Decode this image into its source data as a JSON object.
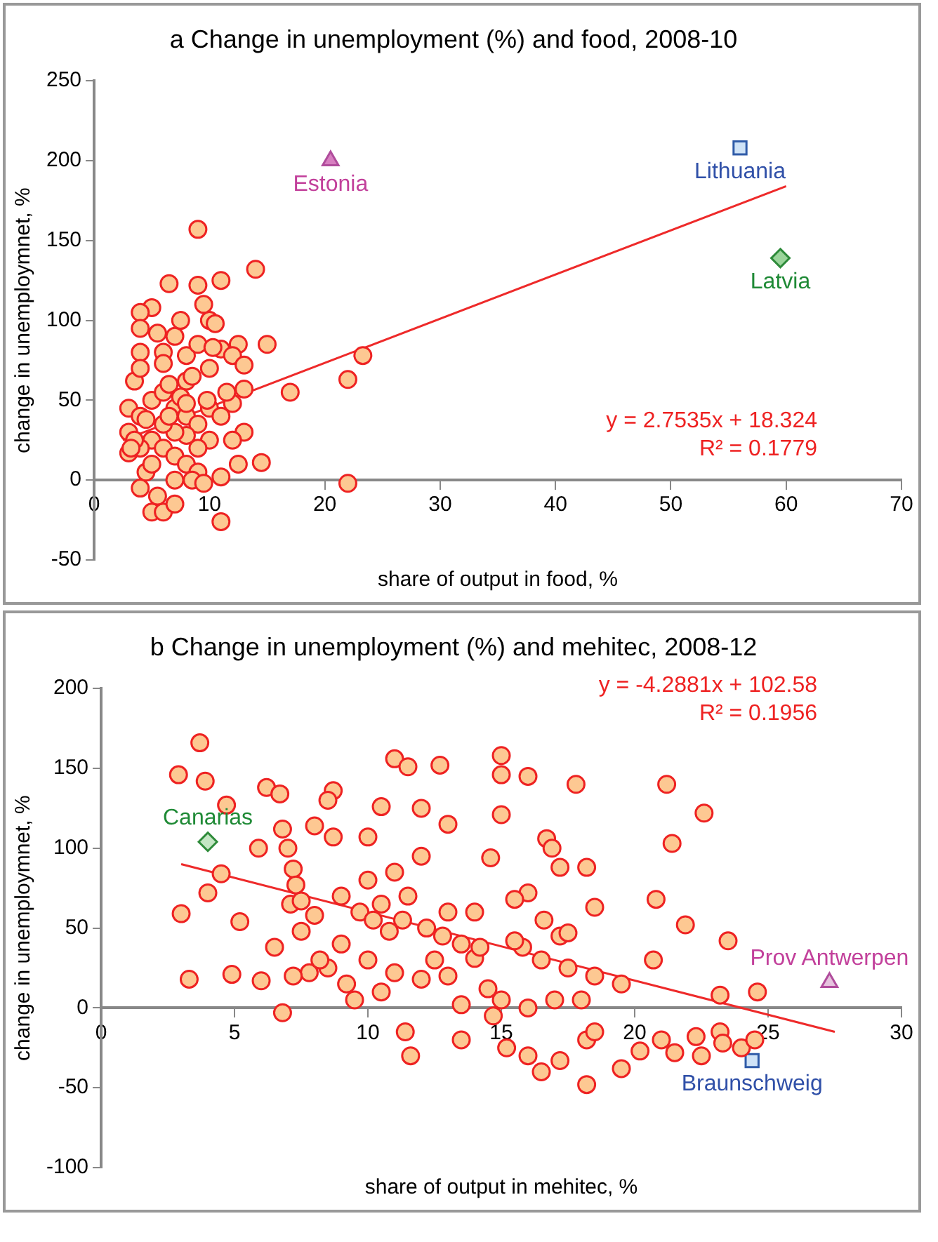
{
  "chart_data": [
    {
      "type": "scatter",
      "title": "a Change in unemployment (%) and food, 2008-10",
      "xlabel": "share of output in food, %",
      "ylabel": "change in unemploymnet, %",
      "xlim": [
        0,
        70
      ],
      "xticks": [
        0,
        10,
        20,
        30,
        40,
        50,
        60,
        70
      ],
      "ylim": [
        -50,
        250
      ],
      "yticks": [
        -50,
        0,
        50,
        100,
        150,
        200,
        250
      ],
      "grid": false,
      "legend": false,
      "annotations": [
        "y = 2.7535x + 18.324",
        "R² = 0.1779"
      ],
      "series": [
        {
          "color": "#fdc892",
          "marker": "circle",
          "x": [
            9,
            14,
            11,
            6.5,
            9,
            5,
            4,
            4,
            10,
            10.5,
            9.5,
            12.5,
            15,
            11,
            12,
            8,
            6,
            4,
            3.5,
            8,
            10,
            13,
            17,
            22,
            23.3,
            22,
            11,
            14.5,
            5,
            6,
            7,
            4,
            3,
            3,
            3,
            4,
            5,
            6,
            7,
            8,
            9,
            10,
            11,
            12,
            13,
            12.5,
            11,
            4.5,
            5,
            6,
            7,
            8,
            9,
            10,
            9,
            8,
            7,
            6,
            5,
            4,
            3.5,
            5.5,
            7,
            8.5,
            9.5,
            6.5,
            7.5,
            8.5,
            9,
            7,
            5.5,
            6,
            4,
            7.5,
            10.3,
            9.8,
            11.5,
            12,
            13,
            8,
            6.5,
            4.5,
            3.2
          ],
          "values": [
            157,
            132,
            125,
            123,
            122,
            108,
            105,
            95,
            100,
            98,
            110,
            85,
            85,
            82,
            78,
            78,
            80,
            80,
            62,
            62,
            70,
            72,
            55,
            63,
            78,
            -2,
            -26,
            11,
            -20,
            -20,
            -15,
            -5,
            17,
            30,
            45,
            40,
            50,
            55,
            45,
            40,
            35,
            45,
            40,
            48,
            30,
            10,
            2,
            5,
            25,
            20,
            15,
            10,
            5,
            25,
            20,
            28,
            30,
            35,
            10,
            20,
            25,
            -10,
            0,
            0,
            -2,
            60,
            52,
            65,
            85,
            90,
            92,
            73,
            70,
            100,
            83,
            50,
            55,
            25,
            57,
            48,
            40,
            38,
            20
          ]
        },
        {
          "name": "Estonia",
          "color": "#d77fc0",
          "marker": "triangle",
          "x": [
            20.5
          ],
          "values": [
            200
          ]
        },
        {
          "name": "Lithuania",
          "color": "#cfe3f7",
          "marker": "square",
          "x": [
            56
          ],
          "values": [
            208
          ]
        },
        {
          "name": "Latvia",
          "color": "#9bd59b",
          "marker": "diamond",
          "x": [
            59.5
          ],
          "values": [
            139
          ]
        },
        {
          "type": "line",
          "color": "#ee2a2a",
          "marker": "none",
          "x": [
            2.5,
            60
          ],
          "values": [
            25,
            184
          ]
        }
      ]
    },
    {
      "type": "scatter",
      "title": "b Change in unemployment (%) and mehitec, 2008-12",
      "xlabel": "share of output in mehitec, %",
      "ylabel": "change in unemploymnet, %",
      "xlim": [
        0,
        30
      ],
      "xticks": [
        0,
        5,
        10,
        15,
        20,
        25,
        30
      ],
      "ylim": [
        -100,
        200
      ],
      "yticks": [
        -100,
        -50,
        0,
        50,
        100,
        150,
        200
      ],
      "grid": false,
      "legend": false,
      "annotations": [
        "y = -4.2881x + 102.58",
        "R² = 0.1956"
      ],
      "series": [
        {
          "color": "#fdc892",
          "marker": "circle",
          "x": [
            3.7,
            2.9,
            3.9,
            4.7,
            3,
            4,
            4.5,
            5.2,
            3.3,
            4.9,
            6.2,
            6.7,
            8.7,
            8.5,
            6.8,
            7,
            7.2,
            7.3,
            7.1,
            7.5,
            5.9,
            8,
            8.7,
            10,
            11,
            11.5,
            12.7,
            10.5,
            12,
            13,
            15,
            15,
            16,
            15,
            17.8,
            21.2,
            22.6,
            21.4,
            16.7,
            16.9,
            17.2,
            18.2,
            14.6,
            16,
            15.5,
            18.5,
            20.8,
            19.5,
            21.9,
            23.5,
            24.6,
            23.2,
            20.7,
            17.2,
            15.8,
            14,
            13,
            12,
            11,
            10,
            9,
            8,
            6,
            6.5,
            6.8,
            7.8,
            8.5,
            7.2,
            9.5,
            10.5,
            11.4,
            11.6,
            13.5,
            14.7,
            15.2,
            16,
            16.5,
            17.2,
            18.2,
            18.5,
            18.2,
            19.5,
            20.2,
            21,
            21.5,
            22.3,
            22.5,
            23.2,
            23.3,
            24,
            24.5,
            13.5,
            15,
            16,
            17,
            18,
            9.7,
            10.2,
            10.8,
            11.3,
            12.2,
            12.8,
            13.5,
            14.2,
            15.5,
            16.5,
            17.5,
            18.5,
            9,
            10,
            11,
            12,
            13,
            14,
            11.5,
            10.5,
            12.5,
            9.2,
            8.2,
            7.5,
            14.5,
            16.6,
            17.5
          ],
          "values": [
            166,
            146,
            142,
            127,
            59,
            72,
            84,
            54,
            18,
            21,
            138,
            134,
            136,
            130,
            112,
            100,
            87,
            77,
            65,
            67,
            100,
            114,
            107,
            107,
            156,
            151,
            152,
            126,
            125,
            115,
            158,
            146,
            145,
            121,
            140,
            140,
            122,
            103,
            106,
            100,
            88,
            88,
            94,
            72,
            68,
            63,
            68,
            15,
            52,
            42,
            10,
            8,
            30,
            45,
            38,
            31,
            20,
            18,
            22,
            30,
            40,
            58,
            17,
            38,
            -3,
            22,
            25,
            20,
            5,
            10,
            -15,
            -30,
            -20,
            -5,
            -25,
            -30,
            -40,
            -33,
            -20,
            -15,
            -48,
            -38,
            -27,
            -20,
            -28,
            -18,
            -30,
            -15,
            -22,
            -25,
            -20,
            2,
            5,
            0,
            5,
            5,
            60,
            55,
            48,
            55,
            50,
            45,
            40,
            38,
            42,
            30,
            25,
            20,
            70,
            80,
            85,
            95,
            60,
            60,
            70,
            65,
            30,
            15,
            30,
            48,
            12,
            55,
            47
          ]
        },
        {
          "name": "Canarias",
          "color": "#c4e6c4",
          "marker": "diamond",
          "x": [
            4
          ],
          "values": [
            104
          ]
        },
        {
          "name": "Prov Antwerpen",
          "color": "#e6c3de",
          "marker": "triangle",
          "x": [
            27.3
          ],
          "values": [
            16
          ]
        },
        {
          "name": "Braunschweig",
          "color": "#cfe3f7",
          "marker": "square",
          "x": [
            24.4
          ],
          "values": [
            -33
          ]
        },
        {
          "type": "line",
          "color": "#ee2a2a",
          "marker": "none",
          "x": [
            3,
            27.5
          ],
          "values": [
            90,
            -15
          ]
        }
      ]
    }
  ]
}
